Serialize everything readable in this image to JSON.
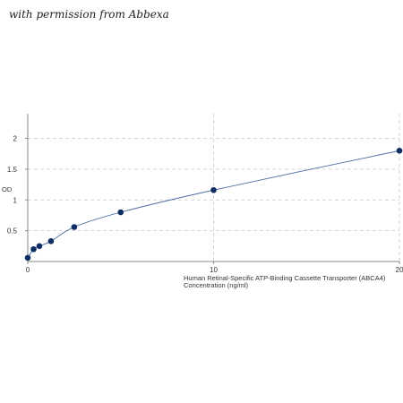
{
  "watermark": "with permission from Abbexa",
  "chart_data": {
    "type": "scatter",
    "title": "",
    "xlabel": "Human Retinal-Specific ATP-Binding Cassette Transporter (ABCA4) Concentration (ng/ml)",
    "xlabel_lines": [
      "Human Retinal-Specific ATP-Binding Cassette Transporter (ABCA4)",
      "Concentration (ng/ml)"
    ],
    "ylabel": "OD",
    "xlim": [
      0,
      20
    ],
    "ylim": [
      0,
      2.4
    ],
    "x_ticks": [
      0,
      10,
      20
    ],
    "y_ticks": [
      0.5,
      1,
      1.5,
      2
    ],
    "y_tick_labels": [
      "0.5",
      "1",
      "1.5",
      "2"
    ],
    "grid": "dashed",
    "fitted_curve": true,
    "series": [
      {
        "x": [
          0,
          0.313,
          0.625,
          1.25,
          2.5,
          5,
          10,
          20
        ],
        "y": [
          0.06,
          0.2,
          0.25,
          0.33,
          0.56,
          0.8,
          1.16,
          1.8
        ]
      }
    ],
    "colors": {
      "point": "#0d2d63",
      "line": "#4a6fa0",
      "grid": "#c8c8c8",
      "axis": "#888888"
    }
  }
}
